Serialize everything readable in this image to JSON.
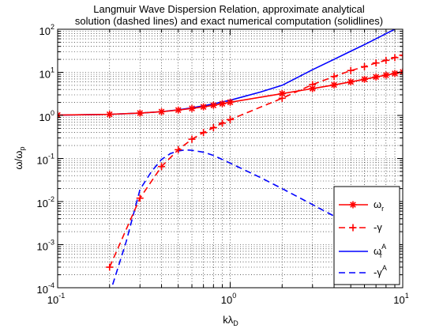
{
  "chart_data": {
    "type": "line",
    "title": "Langmuir Wave Dispersion Relation, approximate analytical",
    "subtitle": "solution (dashed lines) and exact numerical computation (solidlines)",
    "xlabel": {
      "main": "kλ",
      "sub": "D"
    },
    "ylabel": {
      "main": "ω/ω",
      "sub": "p"
    },
    "xscale": "log",
    "yscale": "log",
    "xlim": [
      0.1,
      10
    ],
    "ylim": [
      0.0001,
      100
    ],
    "grid": true,
    "legend_position": "bottom-right",
    "x_ticks": [
      {
        "value": 0.1,
        "base": "10",
        "exp": "-1"
      },
      {
        "value": 1,
        "base": "10",
        "exp": "0"
      },
      {
        "value": 10,
        "base": "10",
        "exp": "1"
      }
    ],
    "y_ticks": [
      {
        "value": 0.0001,
        "base": "10",
        "exp": "-4"
      },
      {
        "value": 0.001,
        "base": "10",
        "exp": "-3"
      },
      {
        "value": 0.01,
        "base": "10",
        "exp": "-2"
      },
      {
        "value": 0.1,
        "base": "10",
        "exp": "-1"
      },
      {
        "value": 1,
        "base": "10",
        "exp": "0"
      },
      {
        "value": 10,
        "base": "10",
        "exp": "1"
      },
      {
        "value": 100,
        "base": "10",
        "exp": "2"
      }
    ],
    "series": [
      {
        "legend_main": "ω",
        "legend_sub": "r",
        "legend_sup": "",
        "color": "#ff0000",
        "dash": "",
        "marker": "star",
        "x": [
          0.1,
          0.2,
          0.3,
          0.4,
          0.5,
          0.6,
          0.7,
          0.8,
          0.9,
          1.0,
          2,
          3,
          4,
          5,
          6,
          7,
          8,
          9,
          10
        ],
        "y": [
          1.02,
          1.06,
          1.13,
          1.22,
          1.33,
          1.45,
          1.58,
          1.72,
          1.87,
          2.02,
          3.2,
          4.2,
          5.1,
          6.0,
          6.9,
          7.8,
          8.6,
          9.4,
          10.2
        ]
      },
      {
        "legend_main": "-γ",
        "legend_sub": "",
        "legend_sup": "",
        "color": "#ff0000",
        "dash": "8,5",
        "marker": "plus",
        "x": [
          0.2,
          0.3,
          0.4,
          0.5,
          0.6,
          0.7,
          0.8,
          0.9,
          1.0,
          2,
          3,
          4,
          5,
          6,
          7,
          8,
          9,
          10
        ],
        "y": [
          0.0003,
          0.012,
          0.065,
          0.16,
          0.28,
          0.4,
          0.52,
          0.66,
          0.8,
          2.5,
          5.2,
          8.0,
          11.0,
          13.5,
          16.5,
          19.0,
          22.0,
          25.0
        ]
      },
      {
        "legend_main": "ω",
        "legend_sub": "r",
        "legend_sup": "A",
        "color": "#0000ff",
        "dash": "",
        "marker": "none",
        "x": [
          0.1,
          0.2,
          0.3,
          0.4,
          0.5,
          0.6,
          0.7,
          0.8,
          0.9,
          1.0,
          1.5,
          2,
          3,
          4,
          5,
          6,
          7,
          8,
          9,
          10
        ],
        "y": [
          1.015,
          1.06,
          1.13,
          1.22,
          1.35,
          1.5,
          1.67,
          1.85,
          2.05,
          2.25,
          3.5,
          5.0,
          11.5,
          20.0,
          31.0,
          44.0,
          60.0,
          79.0,
          100.0,
          125.0
        ]
      },
      {
        "legend_main": "-γ",
        "legend_sub": "",
        "legend_sup": "A",
        "color": "#0000ff",
        "dash": "8,5",
        "marker": "none",
        "x": [
          0.2,
          0.25,
          0.3,
          0.35,
          0.4,
          0.45,
          0.5,
          0.55,
          0.6,
          0.7,
          0.8,
          1.0,
          1.5,
          2,
          3,
          4,
          5,
          6,
          7,
          8
        ],
        "y": [
          7e-05,
          0.0012,
          0.019,
          0.05,
          0.095,
          0.13,
          0.15,
          0.158,
          0.155,
          0.14,
          0.118,
          0.078,
          0.036,
          0.02,
          0.0085,
          0.0046,
          0.0027,
          0.0017,
          0.0011,
          0.00075
        ]
      }
    ]
  }
}
